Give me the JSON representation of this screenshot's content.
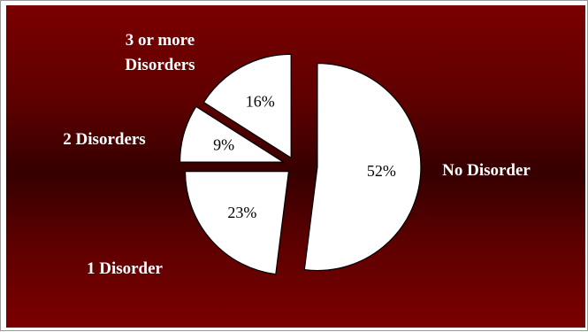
{
  "chart_data": {
    "type": "pie",
    "title": "",
    "exploded": true,
    "slice_fill": "#ffffff",
    "background_colors": [
      "#7a0000",
      "#360000"
    ],
    "slices": [
      {
        "label": "No Disorder",
        "value": 52,
        "pct_label": "52%"
      },
      {
        "label": "1 Disorder",
        "value": 23,
        "pct_label": "23%"
      },
      {
        "label": "2 Disorders",
        "value": 9,
        "pct_label": "9%"
      },
      {
        "label": "3 or more Disorders",
        "label_lines": [
          "3 or more",
          "Disorders"
        ],
        "value": 16,
        "pct_label": "16%"
      }
    ]
  }
}
